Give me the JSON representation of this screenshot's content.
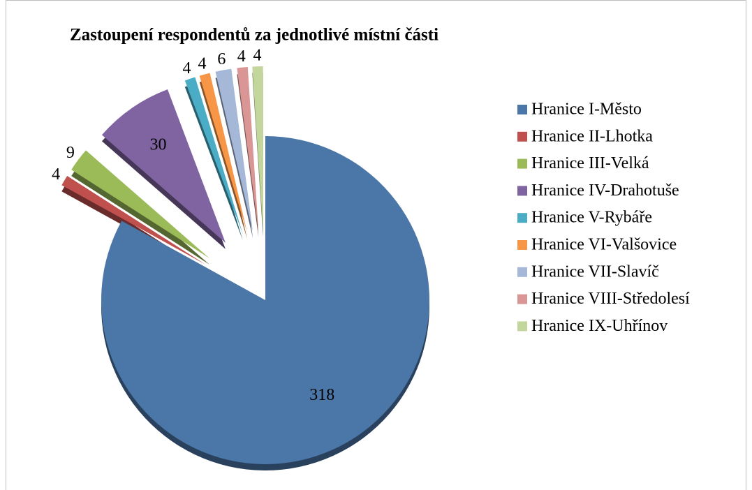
{
  "chart_data": {
    "type": "pie",
    "title": "Zastoupení respondentů za jednotlivé místní části",
    "categories": [
      "Hranice I-Město",
      "Hranice II-Lhotka",
      "Hranice III-Velká",
      "Hranice IV-Drahotuše",
      "Hranice V-Rybáře",
      "Hranice VI-Valšovice",
      "Hranice VII-Slavíč",
      "Hranice VIII-Středolesí",
      "Hranice IX-Uhřínov"
    ],
    "values": [
      318,
      4,
      9,
      30,
      4,
      4,
      6,
      4,
      4
    ],
    "colors": [
      "#4a76a8",
      "#c0504d",
      "#9bbb59",
      "#8064a2",
      "#4bacc6",
      "#f79646",
      "#a5b8d8",
      "#d99694",
      "#c3d69b"
    ],
    "legend": "right"
  }
}
